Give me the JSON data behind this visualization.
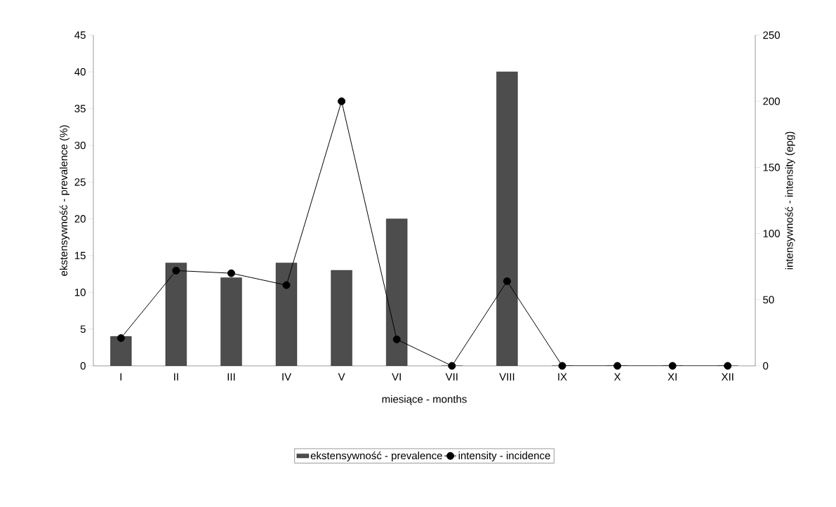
{
  "chart_data": {
    "type": "bar",
    "xlabel": "miesiące - months",
    "ylabel": "ekstensywność - prevalence (%)",
    "y2label": "intensywność - intensity (epg)",
    "categories": [
      "I",
      "II",
      "III",
      "IV",
      "V",
      "VI",
      "VII",
      "VIII",
      "IX",
      "X",
      "XI",
      "XII"
    ],
    "series": [
      {
        "name": "ekstensywność - prevalence",
        "color": "#4d4d4d",
        "values": [
          4,
          14,
          12,
          14,
          13,
          20,
          0,
          40,
          0,
          0,
          0,
          0
        ]
      },
      {
        "name": "intensity - incidence",
        "type": "line",
        "axis": "y2",
        "marker": "circle",
        "color": "#000000",
        "values": [
          21,
          72,
          70,
          61,
          200,
          20,
          0,
          64,
          0,
          0,
          0,
          0
        ]
      }
    ],
    "ylim": [
      0,
      45
    ],
    "yticks": [
      0,
      5,
      10,
      15,
      20,
      25,
      30,
      35,
      40,
      45
    ],
    "y2lim": [
      0,
      250
    ],
    "y2ticks": [
      0,
      50,
      100,
      150,
      200,
      250
    ],
    "legend": "bottom",
    "grid": false
  }
}
